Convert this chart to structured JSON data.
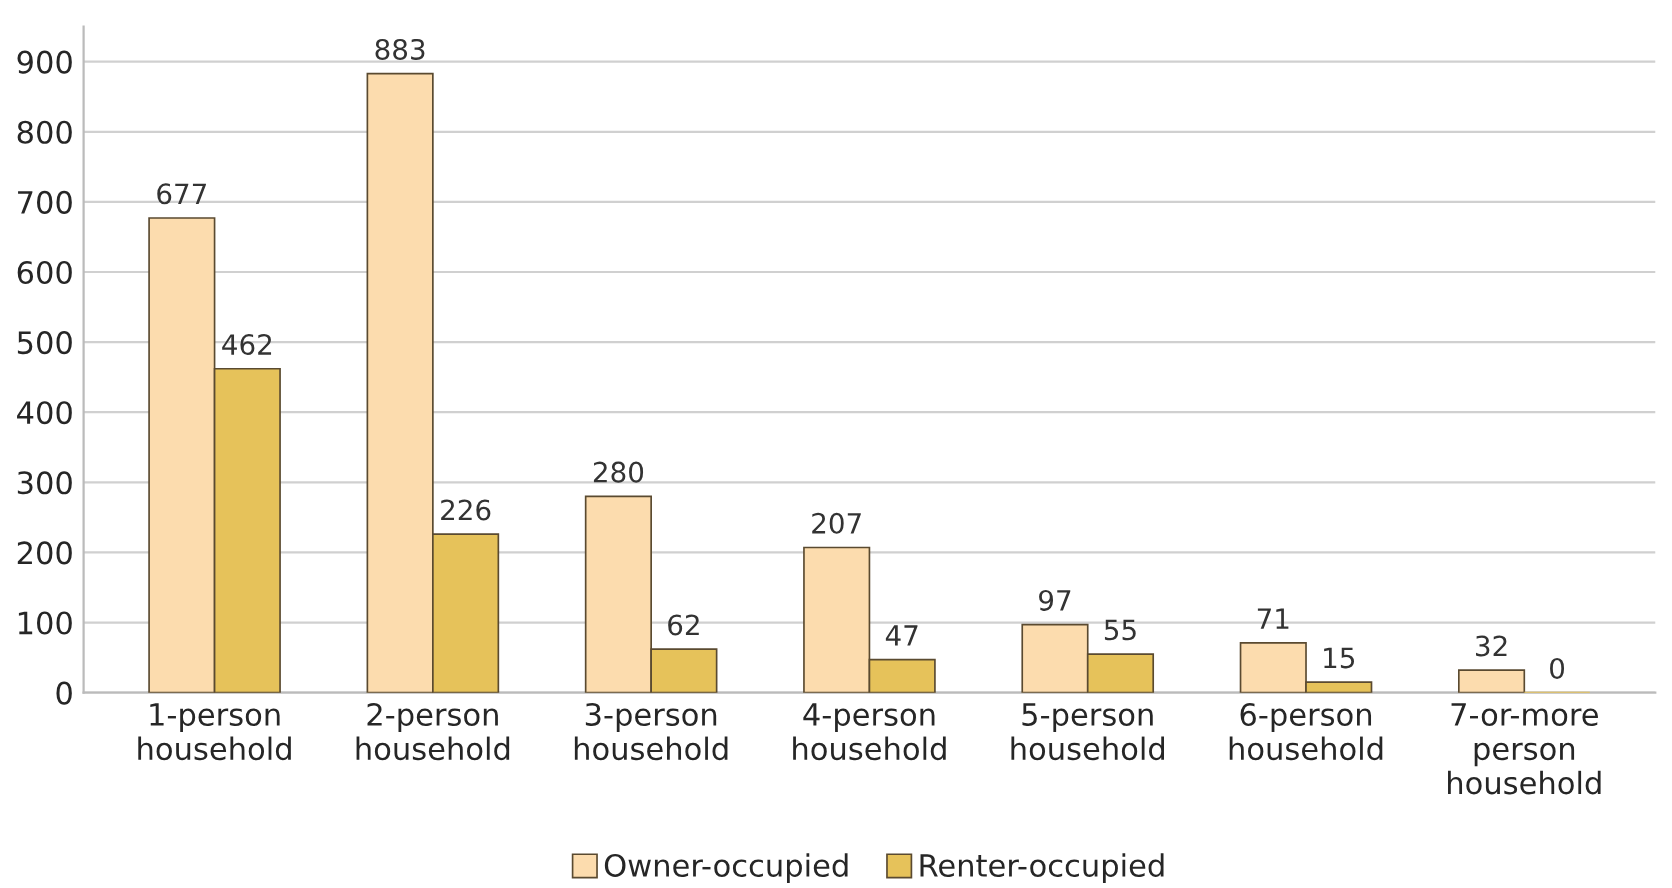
{
  "chart_data": {
    "type": "bar",
    "categories": [
      "1-person\nhousehold",
      "2-person\nhousehold",
      "3-person\nhousehold",
      "4-person\nhousehold",
      "5-person\nhousehold",
      "6-person\nhousehold",
      "7-or-more\nperson\nhousehold"
    ],
    "series": [
      {
        "name": "Owner-occupied",
        "color": "#fcdcae",
        "values": [
          677,
          883,
          280,
          207,
          97,
          71,
          32
        ]
      },
      {
        "name": "Renter-occupied",
        "color": "#e6c25a",
        "values": [
          462,
          226,
          62,
          47,
          55,
          15,
          0
        ]
      }
    ],
    "ylim": [
      0,
      950
    ],
    "yticks": [
      0,
      100,
      200,
      300,
      400,
      500,
      600,
      700,
      800,
      900
    ],
    "grid": "y",
    "legend": "bottom",
    "data_labels": true
  }
}
